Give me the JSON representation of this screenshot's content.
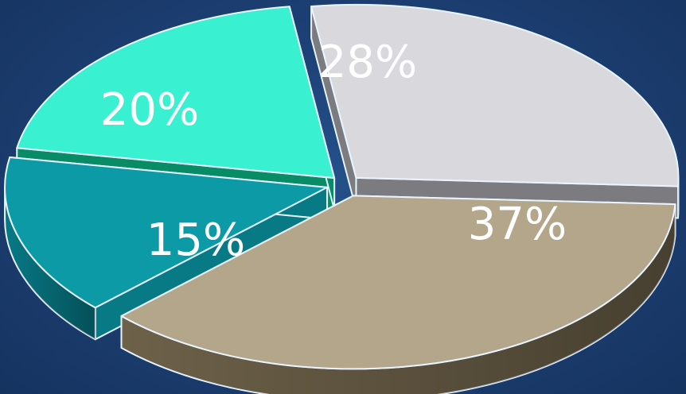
{
  "chart_data": {
    "type": "pie",
    "style": "3d-exploded",
    "title": "",
    "slices": [
      {
        "label": "28%",
        "value": 28,
        "color": "#d9d9dd",
        "side_color": "#7b7b80"
      },
      {
        "label": "37%",
        "value": 37,
        "color": "#b3a68a",
        "side_color": "#6d6149"
      },
      {
        "label": "15%",
        "value": 15,
        "color": "#0c9aa6",
        "side_color": "#077a86"
      },
      {
        "label": "20%",
        "value": 20,
        "color": "#39f0d0",
        "side_color": "#078c66"
      }
    ]
  }
}
